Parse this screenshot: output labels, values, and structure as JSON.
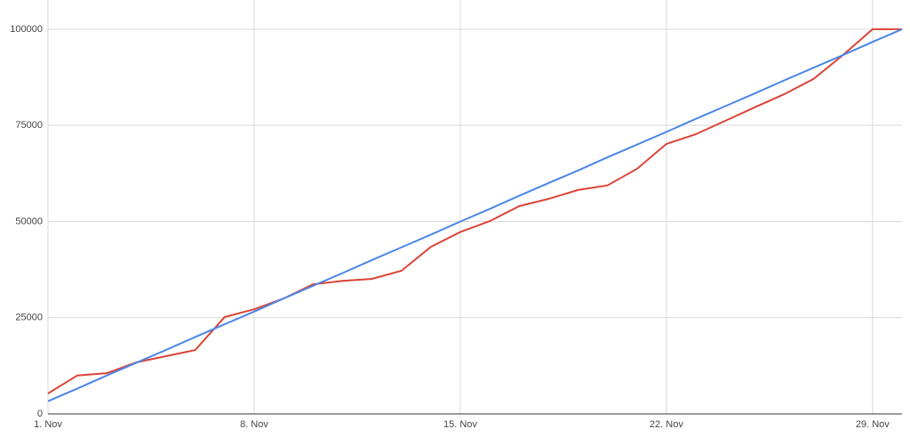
{
  "chart_data": {
    "type": "line",
    "categories": [
      "1. Nov",
      null,
      null,
      null,
      null,
      null,
      null,
      "8. Nov",
      null,
      null,
      null,
      null,
      null,
      null,
      "15. Nov",
      null,
      null,
      null,
      null,
      null,
      null,
      "22. Nov",
      null,
      null,
      null,
      null,
      null,
      null,
      "29. Nov",
      null
    ],
    "series": [
      {
        "color": "#db4437",
        "values": [
          5300,
          10000,
          10600,
          13400,
          15000,
          16600,
          25200,
          27200,
          30000,
          33700,
          34600,
          35100,
          37200,
          43400,
          47300,
          50100,
          54000,
          55900,
          58200,
          59400,
          63700,
          70200,
          72700,
          76200,
          79700,
          83100,
          87100,
          93300,
          100000,
          100000
        ]
      },
      {
        "color": "#4a86e8",
        "values": [
          3300,
          6600,
          10000,
          13300,
          16600,
          20000,
          23300,
          26600,
          30000,
          33300,
          36600,
          40000,
          43300,
          46600,
          50000,
          53300,
          56700,
          60000,
          63300,
          66700,
          70000,
          73300,
          76700,
          80000,
          83300,
          86700,
          90000,
          93300,
          96700,
          100000
        ]
      }
    ],
    "ylim": [
      0,
      107600
    ],
    "yticks": [
      0,
      25000,
      50000,
      75000,
      100000
    ],
    "grid": true
  }
}
